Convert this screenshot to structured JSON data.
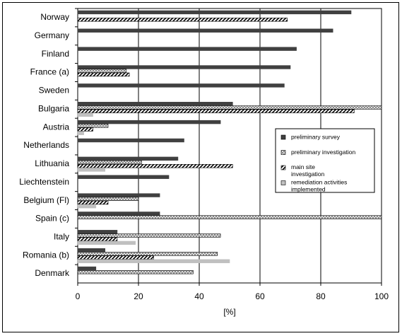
{
  "chart_data": {
    "type": "hbar",
    "x_label": "[%]",
    "categories": [
      "Norway",
      "Germany",
      "Finland",
      "France (a)",
      "Sweden",
      "Bulgaria",
      "Austria",
      "Netherlands",
      "Lithuania",
      "Liechtenstein",
      "Belgium (Fl)",
      "Spain (c)",
      "Italy",
      "Romania (b)",
      "Denmark"
    ],
    "series": [
      {
        "name": "preliminary survey",
        "color": "#404040",
        "pattern": "solid",
        "values": [
          90,
          84,
          72,
          70,
          68,
          51,
          47,
          35,
          33,
          30,
          27,
          27,
          13,
          9,
          6
        ]
      },
      {
        "name": "preliminary investigation",
        "color": "#808080",
        "pattern": "crosshatch",
        "values": [
          null,
          null,
          null,
          16,
          null,
          100,
          10,
          null,
          21,
          null,
          20,
          100,
          47,
          46,
          38
        ]
      },
      {
        "name": "main site investigation",
        "color": "#000000",
        "pattern": "diagonal",
        "values": [
          69,
          null,
          null,
          17,
          null,
          91,
          5,
          null,
          51,
          null,
          10,
          null,
          13,
          25,
          null
        ]
      },
      {
        "name": "remediation activities implemented",
        "color": "#c0c0c0",
        "pattern": "solid",
        "values": [
          null,
          null,
          null,
          null,
          null,
          5,
          2,
          null,
          9,
          null,
          6,
          null,
          19,
          50,
          null
        ]
      }
    ],
    "xlim": [
      0,
      100
    ],
    "xticks": [
      0,
      20,
      40,
      60,
      80,
      100
    ],
    "grid": true
  }
}
